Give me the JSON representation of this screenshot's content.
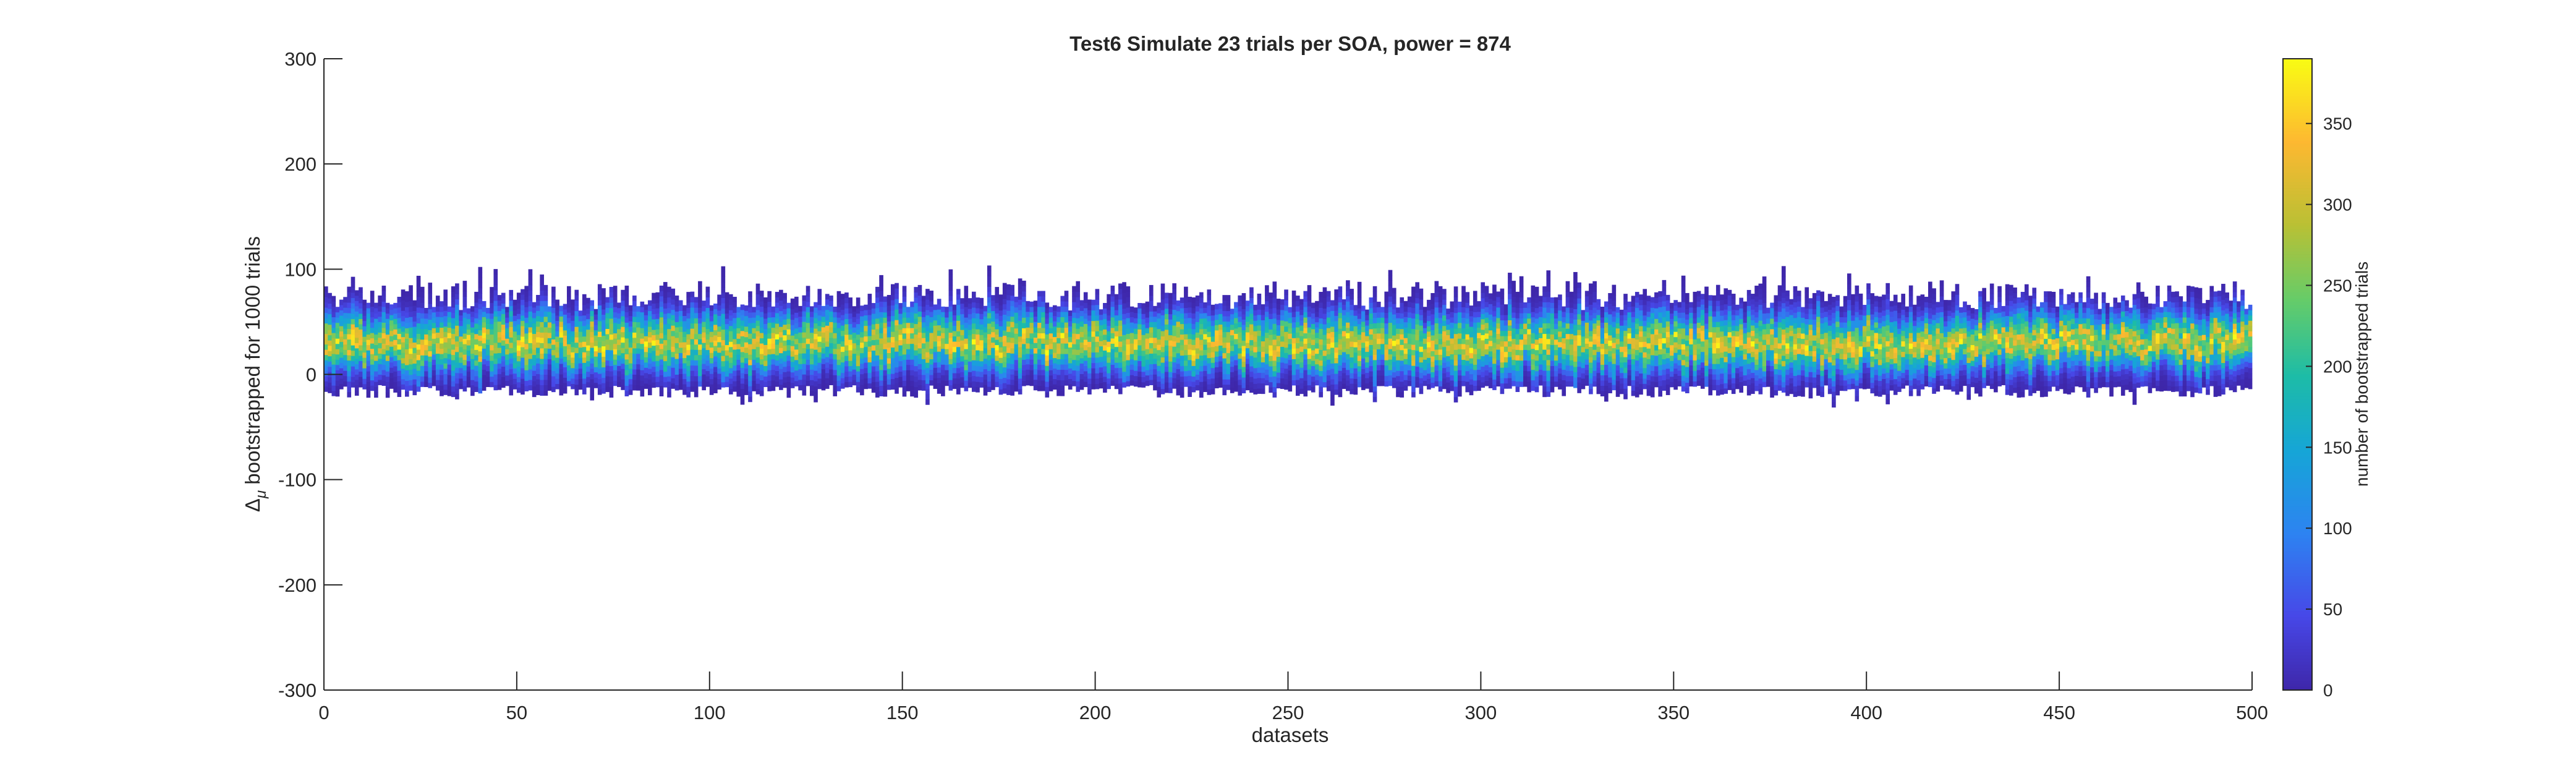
{
  "chart_data": {
    "type": "heatmap",
    "title": "Test6 Simulate 23 trials per SOA, power = 874",
    "xlabel": "datasets",
    "ylabel_main": "Δ",
    "ylabel_sub": "μ",
    "ylabel_rest": " bootstrapped for 1000 trials",
    "xlim": [
      0,
      500
    ],
    "ylim": [
      -300,
      300
    ],
    "x_ticks": [
      0,
      50,
      100,
      150,
      200,
      250,
      300,
      350,
      400,
      450,
      500
    ],
    "y_ticks": [
      300,
      200,
      100,
      0,
      -100,
      -200,
      -300
    ],
    "colorbar": {
      "label": "number of bootstrapped trials",
      "range": [
        0,
        390
      ],
      "ticks": [
        0,
        50,
        100,
        150,
        200,
        250,
        300,
        350
      ],
      "colormap": "parula"
    },
    "distribution": {
      "n_datasets": 500,
      "typical_center": 30,
      "typical_min": -12,
      "typical_max": 75,
      "extreme_min": -32,
      "extreme_max": 100,
      "peak_count": 390
    }
  }
}
